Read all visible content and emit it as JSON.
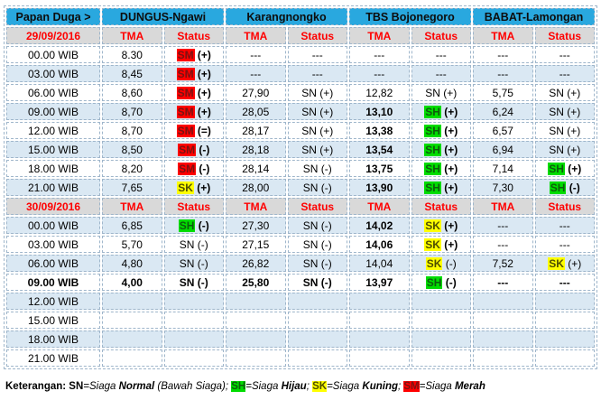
{
  "colors": {
    "header_blue": "#29a8df",
    "section_gray": "#d9d9d9",
    "band_light_blue": "#dae8f3",
    "red_text": "#ff0000",
    "status_red": "#ff0000",
    "status_yellow": "#ffff00",
    "status_green": "#00dc00",
    "cell_border": "#9fb6cb"
  },
  "table": {
    "corner_label": "Papan Duga >",
    "stations": [
      "DUNGUS-Ngawi",
      "Karangnongko",
      "TBS Bojonegoro",
      "BABAT-Lamongan"
    ],
    "col_headers": {
      "tma": "TMA",
      "status": "Status"
    },
    "sections": [
      {
        "date": "29/09/2016",
        "rows": [
          {
            "time": "00.00 WIB",
            "timeBold": false,
            "cells": [
              [
                "8.30",
                false,
                "SM",
                "(+)",
                true
              ],
              [
                "---",
                false,
                "---",
                "",
                false
              ],
              [
                "---",
                false,
                "---",
                "",
                false
              ],
              [
                "---",
                false,
                "---",
                "",
                false
              ]
            ]
          },
          {
            "time": "03.00 WIB",
            "timeBold": false,
            "cells": [
              [
                "8,45",
                false,
                "SM",
                "(+)",
                true
              ],
              [
                "---",
                false,
                "---",
                "",
                false
              ],
              [
                "---",
                false,
                "---",
                "",
                false
              ],
              [
                "---",
                false,
                "---",
                "",
                false
              ]
            ]
          },
          {
            "time": "06.00 WIB",
            "timeBold": false,
            "cells": [
              [
                "8,60",
                false,
                "SM",
                "(+)",
                true
              ],
              [
                "27,90",
                false,
                "SN",
                "(+)",
                false
              ],
              [
                "12,82",
                false,
                "SN",
                "(+)",
                false
              ],
              [
                "5,75",
                false,
                "SN",
                "(+)",
                false
              ]
            ]
          },
          {
            "time": "09.00 WIB",
            "timeBold": false,
            "cells": [
              [
                "8,70",
                false,
                "SM",
                "(+)",
                true
              ],
              [
                "28,05",
                false,
                "SN",
                "(+)",
                false
              ],
              [
                "13,10",
                true,
                "SH",
                "(+)",
                true
              ],
              [
                "6,24",
                false,
                "SN",
                "(+)",
                false
              ]
            ]
          },
          {
            "time": "12.00 WIB",
            "timeBold": false,
            "cells": [
              [
                "8,70",
                false,
                "SM",
                "(=)",
                true
              ],
              [
                "28,17",
                false,
                "SN",
                "(+)",
                false
              ],
              [
                "13,38",
                true,
                "SH",
                "(+)",
                true
              ],
              [
                "6,57",
                false,
                "SN",
                "(+)",
                false
              ]
            ]
          },
          {
            "time": "15.00 WIB",
            "timeBold": false,
            "cells": [
              [
                "8,50",
                false,
                "SM",
                "(-)",
                true
              ],
              [
                "28,18",
                false,
                "SN",
                "(+)",
                false
              ],
              [
                "13,54",
                true,
                "SH",
                "(+)",
                true
              ],
              [
                "6,94",
                false,
                "SN",
                "(+)",
                false
              ]
            ]
          },
          {
            "time": "18.00 WIB",
            "timeBold": false,
            "cells": [
              [
                "8,20",
                false,
                "SM",
                "(-)",
                true
              ],
              [
                "28,14",
                false,
                "SN",
                "(-)",
                false
              ],
              [
                "13,75",
                true,
                "SH",
                "(+)",
                true
              ],
              [
                "7,14",
                false,
                "SH",
                "(+)",
                true
              ]
            ]
          },
          {
            "time": "21.00 WIB",
            "timeBold": false,
            "cells": [
              [
                "7,65",
                false,
                "SK",
                "(+)",
                true
              ],
              [
                "28,00",
                false,
                "SN",
                "(-)",
                false
              ],
              [
                "13,90",
                true,
                "SH",
                "(+)",
                true
              ],
              [
                "7,30",
                false,
                "SH",
                "(-)",
                true
              ]
            ]
          }
        ]
      },
      {
        "date": "30/09/2016",
        "rows": [
          {
            "time": "00.00 WIB",
            "timeBold": false,
            "cells": [
              [
                "6,85",
                false,
                "SH",
                "(-)",
                true
              ],
              [
                "27,30",
                false,
                "SN",
                "(-)",
                false
              ],
              [
                "14,02",
                true,
                "SK",
                "(+)",
                true
              ],
              [
                "---",
                false,
                "---",
                "",
                false
              ]
            ]
          },
          {
            "time": "03.00 WIB",
            "timeBold": false,
            "cells": [
              [
                "5,70",
                false,
                "SN",
                "(-)",
                false
              ],
              [
                "27,15",
                false,
                "SN",
                "(-)",
                false
              ],
              [
                "14,06",
                true,
                "SK",
                "(+)",
                true
              ],
              [
                "---",
                false,
                "---",
                "",
                false
              ]
            ]
          },
          {
            "time": "06.00 WIB",
            "timeBold": false,
            "cells": [
              [
                "4,80",
                false,
                "SN",
                "(-)",
                false
              ],
              [
                "26,82",
                false,
                "SN",
                "(-)",
                false
              ],
              [
                "14,04",
                false,
                "SK",
                "(-)",
                false
              ],
              [
                "7,52",
                false,
                "SK",
                "(+)",
                false
              ]
            ]
          },
          {
            "time": "09.00 WIB",
            "timeBold": true,
            "cells": [
              [
                "4,00",
                true,
                "SN",
                "(-)",
                true
              ],
              [
                "25,80",
                true,
                "SN",
                "(-)",
                true
              ],
              [
                "13,97",
                true,
                "SH",
                "(-)",
                true
              ],
              [
                "---",
                true,
                "---",
                "",
                true
              ]
            ]
          },
          {
            "time": "12.00 WIB",
            "timeBold": false,
            "cells": [
              [
                "",
                false,
                "",
                "",
                false
              ],
              [
                "",
                false,
                "",
                "",
                false
              ],
              [
                "",
                false,
                "",
                "",
                false
              ],
              [
                "",
                false,
                "",
                "",
                false
              ]
            ]
          },
          {
            "time": "15.00 WIB",
            "timeBold": false,
            "cells": [
              [
                "",
                false,
                "",
                "",
                false
              ],
              [
                "",
                false,
                "",
                "",
                false
              ],
              [
                "",
                false,
                "",
                "",
                false
              ],
              [
                "",
                false,
                "",
                "",
                false
              ]
            ]
          },
          {
            "time": "18.00 WIB",
            "timeBold": false,
            "cells": [
              [
                "",
                false,
                "",
                "",
                false
              ],
              [
                "",
                false,
                "",
                "",
                false
              ],
              [
                "",
                false,
                "",
                "",
                false
              ],
              [
                "",
                false,
                "",
                "",
                false
              ]
            ]
          },
          {
            "time": "21.00 WIB",
            "timeBold": false,
            "cells": [
              [
                "",
                false,
                "",
                "",
                false
              ],
              [
                "",
                false,
                "",
                "",
                false
              ],
              [
                "",
                false,
                "",
                "",
                false
              ],
              [
                "",
                false,
                "",
                "",
                false
              ]
            ]
          }
        ]
      }
    ]
  },
  "legend": {
    "parts": [
      {
        "t": "Keterangan: ",
        "c": "b"
      },
      {
        "t": "SN",
        "c": "b"
      },
      {
        "t": "=Siaga ",
        "c": "i"
      },
      {
        "t": "Normal",
        "c": "bi"
      },
      {
        "t": " (Bawah Siaga); ",
        "c": "i"
      },
      {
        "t": "SH",
        "c": "b hl-sh"
      },
      {
        "t": "=Siaga ",
        "c": "i"
      },
      {
        "t": "Hijau",
        "c": "bi"
      },
      {
        "t": "; ",
        "c": "i"
      },
      {
        "t": "SK",
        "c": "b hl-sk"
      },
      {
        "t": "=Siaga ",
        "c": "i"
      },
      {
        "t": "Kuning",
        "c": "bi"
      },
      {
        "t": "; ",
        "c": "i"
      },
      {
        "t": "SM",
        "c": "b hl-sm"
      },
      {
        "t": "=Siaga ",
        "c": "i"
      },
      {
        "t": "Merah",
        "c": "bi"
      }
    ]
  }
}
